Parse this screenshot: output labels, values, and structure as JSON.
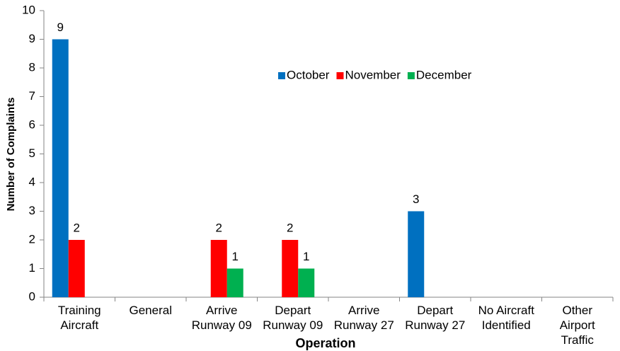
{
  "chart_data": {
    "type": "bar",
    "categories": [
      "Training\nAircraft",
      "General",
      "Arrive\nRunway 09",
      "Depart\nRunway 09",
      "Arrive\nRunway 27",
      "Depart\nRunway 27",
      "No Aircraft\nIdentified",
      "Other\nAirport\nTraffic"
    ],
    "series": [
      {
        "name": "October",
        "color": "#0070c0",
        "values": [
          9,
          0,
          0,
          0,
          0,
          3,
          0,
          0
        ]
      },
      {
        "name": "November",
        "color": "#ff0000",
        "values": [
          2,
          0,
          2,
          2,
          0,
          0,
          0,
          0
        ]
      },
      {
        "name": "December",
        "color": "#00b050",
        "values": [
          0,
          0,
          1,
          1,
          0,
          0,
          0,
          0
        ]
      }
    ],
    "xlabel": "Operation",
    "ylabel": "Number of Complaints",
    "ylim": [
      0,
      10
    ],
    "yticks": [
      0,
      1,
      2,
      3,
      4,
      5,
      6,
      7,
      8,
      9,
      10
    ],
    "grid": false,
    "legend": "top"
  }
}
